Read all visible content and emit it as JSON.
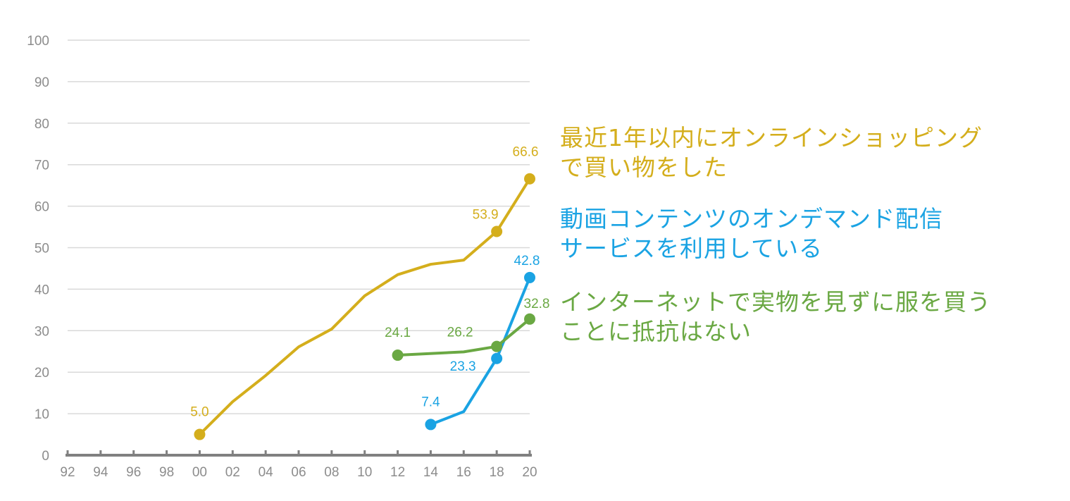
{
  "chart_data": {
    "type": "line",
    "title": "",
    "xlabel": "",
    "ylabel": "",
    "ylim": [
      0,
      100
    ],
    "yticks": [
      "0",
      "10",
      "20",
      "30",
      "40",
      "50",
      "60",
      "70",
      "80",
      "90",
      "100"
    ],
    "x": [
      "92",
      "94",
      "96",
      "98",
      "00",
      "02",
      "04",
      "06",
      "08",
      "10",
      "12",
      "14",
      "16",
      "18",
      "20"
    ],
    "grid": true,
    "series": [
      {
        "name": "最近1年以内にオンラインショッピングで買い物をした",
        "line1": "最近1年以内にオンラインショッピング",
        "line2": "で買い物をした",
        "color": "#d4ae1c",
        "values": [
          null,
          null,
          null,
          null,
          5.0,
          12.9,
          19.2,
          26.1,
          30.4,
          38.4,
          43.5,
          46.0,
          47.0,
          53.9,
          66.6
        ],
        "labels": {
          "00": "5.0",
          "18": "53.9",
          "20": "66.6"
        }
      },
      {
        "name": "動画コンテンツのオンデマンド配信サービスを利用している",
        "line1": "動画コンテンツのオンデマンド配信",
        "line2": "サービスを利用している",
        "color": "#1aa3e3",
        "values": [
          null,
          null,
          null,
          null,
          null,
          null,
          null,
          null,
          null,
          null,
          null,
          7.4,
          10.5,
          23.3,
          42.8
        ],
        "labels": {
          "14": "7.4",
          "18": "23.3",
          "20": "42.8"
        }
      },
      {
        "name": "インターネットで実物を見ずに服を買うことに抵抗はない",
        "line1": "インターネットで実物を見ずに服を買う",
        "line2": "ことに抵抗はない",
        "color": "#6aa843",
        "values": [
          null,
          null,
          null,
          null,
          null,
          null,
          null,
          null,
          null,
          null,
          24.1,
          null,
          24.9,
          26.2,
          32.8
        ],
        "labels": {
          "12": "24.1",
          "18": "26.2",
          "20": "32.8"
        }
      }
    ]
  }
}
